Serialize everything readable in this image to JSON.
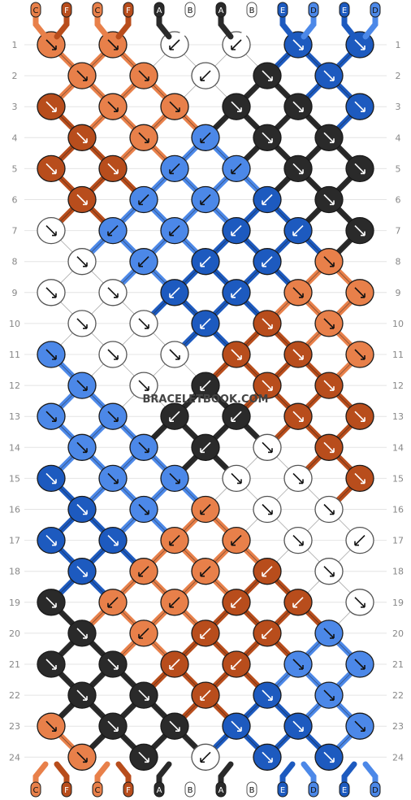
{
  "watermark": "BRACELETBOOK.COM",
  "strand_labels": [
    "C",
    "F",
    "C",
    "F",
    "A",
    "B",
    "A",
    "B",
    "E",
    "D",
    "E",
    "D"
  ],
  "strand_colors": [
    "#e8804a",
    "#b84d1c",
    "#e8804a",
    "#b84d1c",
    "#2a2a2a",
    "#ffffff",
    "#2a2a2a",
    "#ffffff",
    "#1d5abf",
    "#4c88e8",
    "#1d5abf",
    "#4c88e8"
  ],
  "row_numbers": [
    "1",
    "2",
    "3",
    "4",
    "5",
    "6",
    "7",
    "8",
    "9",
    "10",
    "11",
    "12",
    "13",
    "14",
    "15",
    "16",
    "17",
    "18",
    "19",
    "20",
    "21",
    "22",
    "23",
    "24"
  ],
  "knots": [
    [
      "#e8804a",
      "R",
      "#e8804a",
      "R",
      "#ffffff",
      "L",
      "#ffffff",
      "L",
      "#1d5abf",
      "R",
      "#1d5abf",
      "R"
    ],
    [
      "#e8804a",
      "R",
      "#e8804a",
      "R",
      "#ffffff",
      "L",
      "#2a2a2a",
      "R",
      "#1d5abf",
      "R"
    ],
    [
      "#b84d1c",
      "R",
      "#e8804a",
      "R",
      "#e8804a",
      "R",
      "#2a2a2a",
      "R",
      "#2a2a2a",
      "R",
      "#1d5abf",
      "R"
    ],
    [
      "#b84d1c",
      "R",
      "#e8804a",
      "R",
      "#4c88e8",
      "L",
      "#2a2a2a",
      "R",
      "#2a2a2a",
      "R"
    ],
    [
      "#b84d1c",
      "R",
      "#b84d1c",
      "R",
      "#4c88e8",
      "L",
      "#4c88e8",
      "L",
      "#2a2a2a",
      "R",
      "#2a2a2a",
      "R"
    ],
    [
      "#b84d1c",
      "R",
      "#4c88e8",
      "L",
      "#4c88e8",
      "L",
      "#1d5abf",
      "L",
      "#2a2a2a",
      "R"
    ],
    [
      "#ffffff",
      "R",
      "#4c88e8",
      "L",
      "#4c88e8",
      "L",
      "#1d5abf",
      "L",
      "#1d5abf",
      "L",
      "#2a2a2a",
      "R"
    ],
    [
      "#ffffff",
      "R",
      "#4c88e8",
      "L",
      "#1d5abf",
      "L",
      "#1d5abf",
      "L",
      "#e8804a",
      "R"
    ],
    [
      "#ffffff",
      "R",
      "#ffffff",
      "R",
      "#1d5abf",
      "L",
      "#1d5abf",
      "L",
      "#e8804a",
      "R",
      "#e8804a",
      "R"
    ],
    [
      "#ffffff",
      "R",
      "#ffffff",
      "R",
      "#1d5abf",
      "L",
      "#b84d1c",
      "R",
      "#e8804a",
      "R"
    ],
    [
      "#4c88e8",
      "R",
      "#ffffff",
      "R",
      "#ffffff",
      "R",
      "#b84d1c",
      "R",
      "#b84d1c",
      "R",
      "#e8804a",
      "R"
    ],
    [
      "#4c88e8",
      "R",
      "#ffffff",
      "R",
      "#2a2a2a",
      "L",
      "#b84d1c",
      "R",
      "#b84d1c",
      "R"
    ],
    [
      "#4c88e8",
      "R",
      "#4c88e8",
      "R",
      "#2a2a2a",
      "L",
      "#2a2a2a",
      "L",
      "#b84d1c",
      "R",
      "#b84d1c",
      "R"
    ],
    [
      "#4c88e8",
      "R",
      "#4c88e8",
      "R",
      "#2a2a2a",
      "L",
      "#ffffff",
      "R",
      "#b84d1c",
      "R"
    ],
    [
      "#1d5abf",
      "R",
      "#4c88e8",
      "R",
      "#4c88e8",
      "R",
      "#ffffff",
      "R",
      "#ffffff",
      "R",
      "#b84d1c",
      "R"
    ],
    [
      "#1d5abf",
      "R",
      "#4c88e8",
      "R",
      "#e8804a",
      "L",
      "#ffffff",
      "R",
      "#ffffff",
      "R"
    ],
    [
      "#1d5abf",
      "R",
      "#1d5abf",
      "R",
      "#e8804a",
      "L",
      "#e8804a",
      "L",
      "#ffffff",
      "R",
      "#ffffff",
      "L"
    ],
    [
      "#1d5abf",
      "R",
      "#e8804a",
      "L",
      "#e8804a",
      "L",
      "#b84d1c",
      "L",
      "#ffffff",
      "R"
    ],
    [
      "#2a2a2a",
      "R",
      "#e8804a",
      "L",
      "#e8804a",
      "L",
      "#b84d1c",
      "L",
      "#b84d1c",
      "L",
      "#ffffff",
      "R"
    ],
    [
      "#2a2a2a",
      "R",
      "#e8804a",
      "L",
      "#b84d1c",
      "L",
      "#b84d1c",
      "L",
      "#4c88e8",
      "R"
    ],
    [
      "#2a2a2a",
      "R",
      "#2a2a2a",
      "R",
      "#b84d1c",
      "L",
      "#b84d1c",
      "L",
      "#4c88e8",
      "R",
      "#4c88e8",
      "R"
    ],
    [
      "#2a2a2a",
      "R",
      "#2a2a2a",
      "R",
      "#b84d1c",
      "L",
      "#1d5abf",
      "R",
      "#4c88e8",
      "R"
    ],
    [
      "#e8804a",
      "R",
      "#2a2a2a",
      "R",
      "#2a2a2a",
      "R",
      "#1d5abf",
      "R",
      "#1d5abf",
      "R",
      "#4c88e8",
      "R"
    ],
    [
      "#e8804a",
      "R",
      "#2a2a2a",
      "R",
      "#ffffff",
      "L",
      "#1d5abf",
      "R",
      "#1d5abf",
      "R"
    ]
  ]
}
